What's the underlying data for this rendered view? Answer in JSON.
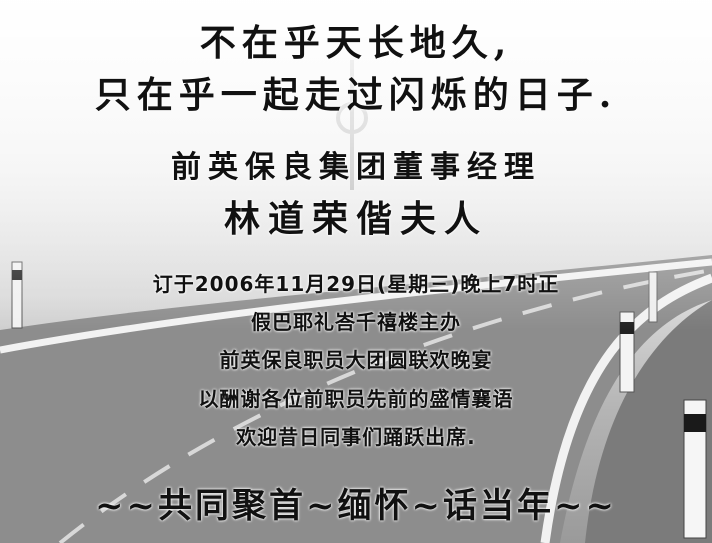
{
  "poster": {
    "line1": "不在乎天长地久,",
    "line2": "只在乎一起走过闪烁的日子.",
    "host_title": "前英保良集团董事经理",
    "host_name": "林道荣偕夫人",
    "details": [
      "订于2006年11月29日(星期三)晚上7时正",
      "假巴耶礼峇千禧楼主办",
      "前英保良职员大团圆联欢晚宴",
      "以酬谢各位前职员先前的盛情襄语",
      "欢迎昔日同事们踊跃出席."
    ],
    "slogan": "~~共同聚首~缅怀~话当年~~"
  }
}
